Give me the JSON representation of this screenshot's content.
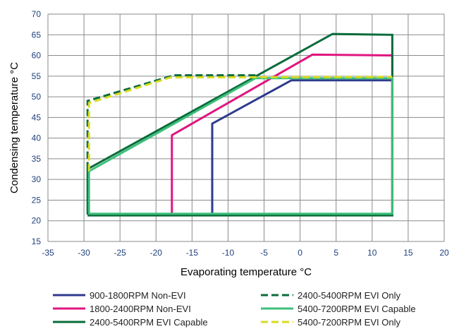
{
  "chart_data": {
    "type": "line",
    "title": "",
    "xlabel": "Evaporating temperature °C",
    "ylabel": "Condensing temperature °C",
    "xlim": [
      -35,
      20
    ],
    "ylim": [
      15,
      70
    ],
    "xticks": [
      -35,
      -30,
      -25,
      -20,
      -15,
      -10,
      -5,
      0,
      5,
      10,
      15,
      20
    ],
    "yticks": [
      15,
      20,
      25,
      30,
      35,
      40,
      45,
      50,
      55,
      60,
      65,
      70
    ],
    "grid": true,
    "legend_position": "bottom",
    "series": [
      {
        "name": "900-1800RPM Non-EVI",
        "color": "#2e3a8c",
        "dash": "solid",
        "points": [
          [
            -12.2,
            21.5
          ],
          [
            -12.2,
            43.5
          ],
          [
            -1.2,
            54
          ],
          [
            12.8,
            54
          ],
          [
            12.8,
            21.5
          ],
          [
            -12.2,
            21.5
          ]
        ]
      },
      {
        "name": "1800-2400RPM Non-EVI",
        "color": "#e0157f",
        "dash": "solid",
        "points": [
          [
            -17.8,
            21.5
          ],
          [
            -17.8,
            40.7
          ],
          [
            1.7,
            60.2
          ],
          [
            12.8,
            60
          ],
          [
            12.8,
            21.5
          ],
          [
            -17.8,
            21.5
          ]
        ]
      },
      {
        "name": "2400-5400RPM EVI Capable",
        "color": "#0a6b3a",
        "dash": "solid",
        "points": [
          [
            -29.5,
            21.5
          ],
          [
            -29.5,
            32.5
          ],
          [
            4.5,
            65.2
          ],
          [
            12.8,
            65
          ],
          [
            12.8,
            21.3
          ],
          [
            -29.5,
            21.3
          ]
        ]
      },
      {
        "name": "2400-5400RPM EVI Only",
        "color": "#0a6b3a",
        "dash": "dashed",
        "points": [
          [
            -29.5,
            32.5
          ],
          [
            -29.5,
            49
          ],
          [
            -17.5,
            55.2
          ],
          [
            -6,
            55.2
          ]
        ]
      },
      {
        "name": "5400-7200RPM EVI Capable",
        "color": "#3cbf7a",
        "dash": "solid",
        "points": [
          [
            -29.3,
            21.7
          ],
          [
            -29.3,
            32
          ],
          [
            -6.2,
            54.5
          ],
          [
            12.8,
            54.5
          ],
          [
            12.8,
            21.7
          ],
          [
            -29.3,
            21.7
          ]
        ]
      },
      {
        "name": "5400-7200RPM EVI Only",
        "color": "#d8dc20",
        "dash": "dashed",
        "points": [
          [
            -29.3,
            32
          ],
          [
            -29.3,
            48.5
          ],
          [
            -18,
            54.7
          ],
          [
            12.8,
            54.8
          ]
        ]
      }
    ]
  }
}
